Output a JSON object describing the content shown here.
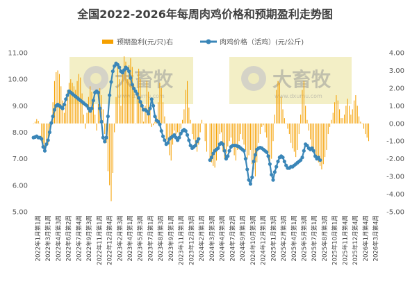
{
  "chart_data": {
    "type": "bar+line",
    "title": "全国2022-2026年每周肉鸡价格和预期盈利走势图",
    "legend": [
      {
        "name": "预期盈利(元/只)右",
        "color": "#f5a000",
        "kind": "bar"
      },
      {
        "name": "肉鸡价格（活鸡）(元/公斤)",
        "color": "#3a86b8",
        "kind": "line"
      }
    ],
    "left_axis": {
      "min": 5,
      "max": 11,
      "ticks": [
        "11.00",
        "10.00",
        "9.00",
        "8.00",
        "7.00",
        "6.00",
        "5.00"
      ]
    },
    "right_axis": {
      "min": -5,
      "max": 4,
      "ticks": [
        "4.00",
        "3.00",
        "2.00",
        "1.00",
        "0.00",
        "-1.00",
        "-2.00",
        "-3.00",
        "-4.00",
        "-5.00"
      ]
    },
    "x_labels": [
      "2022年1月第1周",
      "2022年3月第1周",
      "2022年4月第3周",
      "2022年6月第2周",
      "2022年7月第4周",
      "2022年9月第3周",
      "2022年11月第1周",
      "2022年12月第4周",
      "2023年2月第3周",
      "2023年4月第1周",
      "2023年5月第3周",
      "2023年7月第1周",
      "2023年8月第3周",
      "2023年9月第1周",
      "2023年11月第1周",
      "2023年12月第3周",
      "2024年2月第1周",
      "2024年3月第3周",
      "2024年4月第3周",
      "2024年7月第2周",
      "2024年9月第1周",
      "2024年10月第3周",
      "2024年12月第1周",
      "2025年1月第3周",
      "2025年2月第3周",
      "2025年4月第1周",
      "2025年5月第3周",
      "2025年7月第1周",
      "2025年8月第3周",
      "2025年10月第1周",
      "2025年11月第4周",
      "2025年12月第4周",
      "2026年1月第4周",
      "2026年3月第4周"
    ],
    "price_series": {
      "name": "肉鸡价格（活鸡）(元/公斤)",
      "segments": [
        [
          7.8,
          7.82,
          7.85,
          7.8,
          7.8,
          7.75,
          7.45,
          7.3,
          7.55,
          7.7,
          8.0,
          8.35,
          8.6,
          8.85,
          9.0,
          9.05,
          9.0,
          8.95,
          8.9,
          9.05,
          9.25,
          9.4,
          9.55,
          9.5,
          9.45,
          9.4,
          9.35,
          9.3,
          9.25,
          9.2,
          9.15,
          9.1,
          9.05,
          9.0,
          8.9,
          8.8,
          8.9,
          9.2,
          9.5,
          9.55,
          9.5,
          8.9,
          8.4,
          7.8,
          7.65,
          7.8,
          8.6,
          9.4,
          9.9,
          10.3,
          10.5,
          10.6,
          10.55,
          10.45,
          10.3,
          10.25,
          10.35,
          10.45,
          10.4,
          10.3,
          10.05,
          9.8,
          9.65,
          9.55,
          9.45,
          9.3,
          9.15,
          9.0,
          8.85,
          8.85,
          8.8,
          8.7,
          8.9,
          9.25,
          9.0,
          8.6,
          8.45,
          8.4,
          8.3,
          8.05,
          7.85,
          7.7,
          7.55,
          7.6,
          7.75,
          7.8,
          7.85,
          7.9,
          7.8,
          7.7,
          7.8,
          7.95,
          8.05,
          8.1,
          8.05,
          7.9,
          7.7,
          7.5,
          7.4,
          7.45,
          7.5,
          7.65,
          7.75
        ],
        [
          6.95,
          7.05,
          7.2,
          7.3,
          7.35,
          7.4,
          7.55,
          7.6,
          7.55,
          7.3,
          7.0,
          7.1,
          7.3,
          7.45,
          7.5,
          7.5,
          7.5,
          7.48,
          7.45,
          7.4,
          7.35,
          7.3,
          7.0,
          6.6,
          6.2,
          6.05,
          6.3,
          6.9,
          7.15,
          7.35,
          7.4,
          7.42,
          7.4,
          7.35,
          7.3,
          7.25,
          7.1,
          6.8,
          6.4,
          6.2,
          6.5,
          6.7,
          6.9,
          7.05,
          7.1,
          7.05,
          6.9,
          6.75,
          6.65,
          6.65,
          6.7,
          6.7,
          6.75,
          6.8,
          6.85,
          6.9,
          6.95,
          7.05,
          7.3,
          7.55,
          7.5,
          7.4,
          7.35,
          7.4,
          7.3,
          7.1,
          7.0,
          7.05,
          6.95
        ]
      ]
    },
    "profit_series": {
      "name": "预期盈利(元/只)右",
      "segments": [
        [
          0.0,
          0.1,
          0.25,
          0.15,
          0.0,
          -0.8,
          -1.35,
          -1.6,
          -1.1,
          -1.2,
          -0.6,
          0.1,
          1.2,
          2.4,
          2.9,
          3.0,
          2.8,
          2.1,
          1.3,
          0.6,
          1.1,
          1.9,
          2.3,
          2.5,
          2.3,
          2.1,
          1.9,
          2.4,
          2.8,
          2.6,
          1.7,
          0.5,
          -0.3,
          0.6,
          1.5,
          2.1,
          1.8,
          1.2,
          0.5,
          -0.4,
          1.1,
          2.0,
          1.6,
          0.8,
          -0.6,
          -1.1,
          -2.7,
          -3.5,
          -4.4,
          -2.8,
          -0.5,
          1.5,
          3.2,
          2.5,
          1.0,
          3.0,
          3.8,
          3.5,
          2.5,
          3.3,
          3.7,
          3.2,
          2.2,
          0.0,
          1.6,
          3.1,
          2.5,
          1.2,
          0.1,
          1.0,
          2.4,
          1.8,
          0.8,
          -0.2,
          -0.1,
          0.1,
          0.4,
          1.2,
          2.3,
          2.0,
          1.2,
          0.4,
          -0.9,
          -1.2,
          -1.8,
          -2.1,
          -1.2,
          -0.4,
          -0.6,
          -0.5,
          -0.8,
          -0.3,
          0.2,
          0.8,
          1.9,
          2.4,
          0.9,
          0.2,
          -0.6,
          -0.9,
          -1.3,
          -1.6,
          -1.2,
          -0.5,
          0.2,
          0.0,
          -1.0,
          -1.6
        ],
        [
          -2.0,
          -2.2,
          -2.4,
          -2.5,
          -2.1,
          -1.3,
          -0.6,
          -0.5,
          -1.6,
          -2.0,
          -1.7,
          -1.3,
          -1.0,
          -0.8,
          -1.2,
          -1.8,
          -2.1,
          -1.5,
          -1.0,
          -0.6,
          -0.9,
          -1.2,
          -1.5,
          -2.0,
          -1.8,
          -1.5,
          -2.3,
          -2.6,
          -3.0,
          -2.2,
          -1.1,
          -0.6,
          -0.2,
          -0.1,
          -0.5,
          -0.8,
          -1.7,
          -2.3,
          -2.0,
          -1.0,
          0.5,
          1.9,
          2.4,
          2.3,
          1.5,
          0.8,
          0.3,
          0.0,
          -0.3,
          -0.6,
          -1.1,
          -1.4,
          -1.6,
          -1.9,
          -1.5,
          -0.6,
          0.5,
          1.9,
          2.4,
          1.0,
          0.2,
          -0.4,
          -0.9,
          -1.3,
          -1.6,
          -1.8,
          -2.0,
          -2.2,
          -2.4,
          -2.6,
          -2.3,
          -1.9,
          -1.5,
          -0.6,
          -0.2,
          0.2,
          0.6,
          1.2,
          1.6,
          1.3,
          0.8,
          0.3,
          0.3,
          0.5,
          1.0,
          1.4,
          1.0,
          0.5,
          0.8,
          1.3,
          1.6,
          1.0,
          0.4,
          0.1,
          0.0,
          -0.3,
          -0.6,
          -0.8,
          -1.0
        ]
      ]
    },
    "watermark": {
      "text": "大畜牧",
      "sub": "www.dxumu.com"
    }
  }
}
